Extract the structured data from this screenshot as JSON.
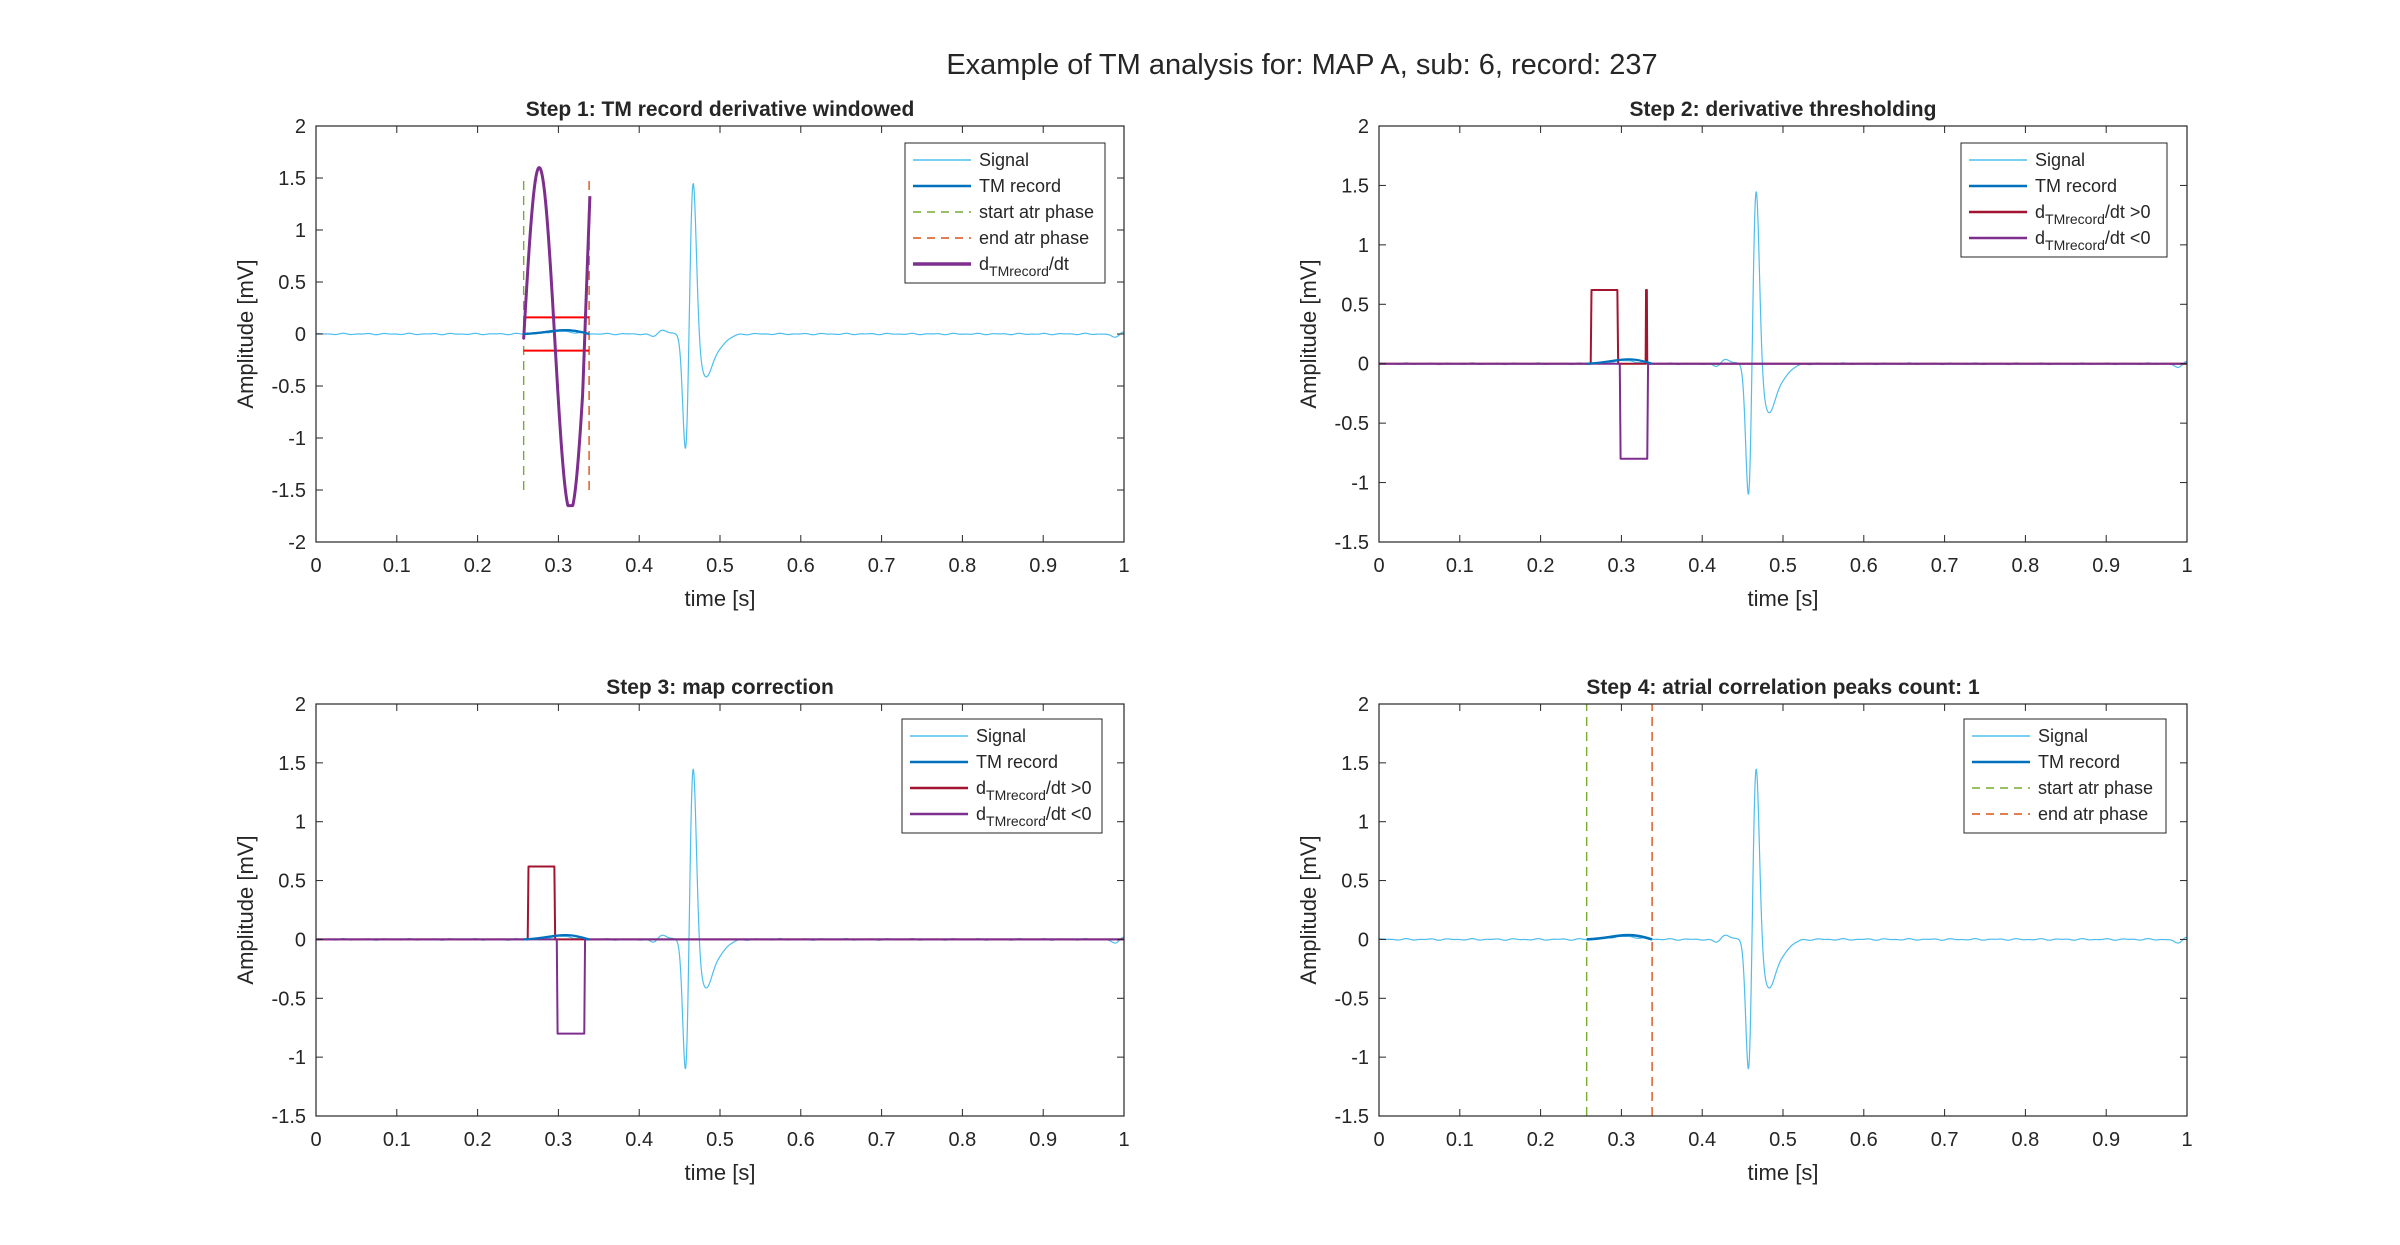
{
  "figure_title": "Example of TM analysis for: MAP A, sub: 6, record: 237",
  "colors": {
    "signal": "#4DBEEE",
    "tm_record": "#0072BD",
    "deriv": "#7E2F8E",
    "deriv_pos": "#A2142F",
    "start_line": "#77AC30",
    "end_line": "#D95319",
    "threshold": "#FF0000",
    "axis": "#262626"
  },
  "chart_data": [
    {
      "type": "line",
      "title": "Step 1: TM record derivative windowed",
      "xlabel": "time [s]",
      "ylabel": "Amplitude [mV]",
      "xlim": [
        0,
        1
      ],
      "ylim": [
        -2,
        2
      ],
      "xticks": [
        0,
        0.1,
        0.2,
        0.3,
        0.4,
        0.5,
        0.6,
        0.7,
        0.8,
        0.9,
        1
      ],
      "yticks": [
        -2,
        -1.5,
        -1,
        -0.5,
        0,
        0.5,
        1,
        1.5,
        2
      ],
      "legend": [
        {
          "label": "Signal",
          "color": "signal",
          "style": "solid",
          "width": 1
        },
        {
          "label": "TM record",
          "color": "tm_record",
          "style": "solid",
          "width": 2
        },
        {
          "label": "start atr phase",
          "color": "start_line",
          "style": "dash",
          "width": 1
        },
        {
          "label": "end atr phase",
          "color": "end_line",
          "style": "dash",
          "width": 1
        },
        {
          "label": "d",
          "sub": "TMrecord",
          "post": "/dt",
          "color": "deriv",
          "style": "solid",
          "width": 3
        }
      ],
      "series": [
        {
          "name": "Signal",
          "kind": "ecg",
          "color": "signal",
          "width": 1.2
        },
        {
          "name": "TM record",
          "kind": "tm",
          "x0": 0.257,
          "x1": 0.338,
          "color": "tm_record",
          "width": 2.2
        },
        {
          "name": "start atr phase",
          "kind": "vline",
          "x": 0.257,
          "y": [
            -1.5,
            1.5
          ],
          "color": "start_line",
          "dash": true
        },
        {
          "name": "end atr phase",
          "kind": "vline",
          "x": 0.338,
          "y": [
            -1.5,
            1.5
          ],
          "color": "end_line",
          "dash": true
        },
        {
          "name": "threshold +",
          "kind": "hline",
          "x": [
            0.257,
            0.338
          ],
          "y": 0.16,
          "color": "threshold"
        },
        {
          "name": "threshold -",
          "kind": "hline",
          "x": [
            0.257,
            0.338
          ],
          "y": -0.16,
          "color": "threshold"
        },
        {
          "name": "dTMrecord/dt",
          "kind": "deriv",
          "color": "deriv",
          "width": 3
        },
        {
          "name": "TM record overlay",
          "kind": "tm",
          "x0": 0.257,
          "x1": 0.338,
          "color": "tm_record",
          "width": 2.2
        }
      ]
    },
    {
      "type": "line",
      "title": "Step 2: derivative thresholding",
      "xlabel": "time [s]",
      "ylabel": "Amplitude [mV]",
      "xlim": [
        0,
        1
      ],
      "ylim": [
        -1.5,
        2
      ],
      "xticks": [
        0,
        0.1,
        0.2,
        0.3,
        0.4,
        0.5,
        0.6,
        0.7,
        0.8,
        0.9,
        1
      ],
      "yticks": [
        -1.5,
        -1,
        -0.5,
        0,
        0.5,
        1,
        1.5,
        2
      ],
      "legend": [
        {
          "label": "Signal",
          "color": "signal",
          "style": "solid",
          "width": 1
        },
        {
          "label": "TM record",
          "color": "tm_record",
          "style": "solid",
          "width": 2
        },
        {
          "label": "d",
          "sub": "TMrecord",
          "post": "/dt >0",
          "color": "deriv_pos",
          "style": "solid",
          "width": 2
        },
        {
          "label": "d",
          "sub": "TMrecord",
          "post": "/dt <0",
          "color": "deriv",
          "style": "solid",
          "width": 2
        }
      ],
      "series": [
        {
          "name": "Signal",
          "kind": "ecg",
          "color": "signal",
          "width": 1.2
        },
        {
          "name": "dTMrecord/dt >0",
          "kind": "pos_step",
          "color": "deriv_pos",
          "width": 2
        },
        {
          "name": "dTMrecord/dt <0",
          "kind": "neg_step",
          "color": "deriv",
          "width": 2
        },
        {
          "name": "TM record",
          "kind": "tm",
          "x0": 0.257,
          "x1": 0.338,
          "color": "tm_record",
          "width": 2.2
        }
      ]
    },
    {
      "type": "line",
      "title": "Step 3: map correction",
      "xlabel": "time [s]",
      "ylabel": "Amplitude [mV]",
      "xlim": [
        0,
        1
      ],
      "ylim": [
        -1.5,
        2
      ],
      "xticks": [
        0,
        0.1,
        0.2,
        0.3,
        0.4,
        0.5,
        0.6,
        0.7,
        0.8,
        0.9,
        1
      ],
      "yticks": [
        -1.5,
        -1,
        -0.5,
        0,
        0.5,
        1,
        1.5,
        2
      ],
      "legend": [
        {
          "label": "Signal",
          "color": "signal",
          "style": "solid",
          "width": 1
        },
        {
          "label": "TM record",
          "color": "tm_record",
          "style": "solid",
          "width": 2
        },
        {
          "label": "d",
          "sub": "TMrecord",
          "post": "/dt >0",
          "color": "deriv_pos",
          "style": "solid",
          "width": 2
        },
        {
          "label": "d",
          "sub": "TMrecord",
          "post": "/dt <0",
          "color": "deriv",
          "style": "solid",
          "width": 2
        }
      ],
      "series": [
        {
          "name": "Signal",
          "kind": "ecg",
          "color": "signal",
          "width": 1.2
        },
        {
          "name": "dTMrecord/dt >0",
          "kind": "pos_step_corr",
          "color": "deriv_pos",
          "width": 2
        },
        {
          "name": "dTMrecord/dt <0",
          "kind": "neg_step",
          "color": "deriv",
          "width": 2
        },
        {
          "name": "TM record",
          "kind": "tm",
          "x0": 0.257,
          "x1": 0.338,
          "color": "tm_record",
          "width": 2.2
        }
      ]
    },
    {
      "type": "line",
      "title": "Step 4: atrial correlation peaks count: 1",
      "xlabel": "time [s]",
      "ylabel": "Amplitude [mV]",
      "xlim": [
        0,
        1
      ],
      "ylim": [
        -1.5,
        2
      ],
      "xticks": [
        0,
        0.1,
        0.2,
        0.3,
        0.4,
        0.5,
        0.6,
        0.7,
        0.8,
        0.9,
        1
      ],
      "yticks": [
        -1.5,
        -1,
        -0.5,
        0,
        0.5,
        1,
        1.5,
        2
      ],
      "legend": [
        {
          "label": "Signal",
          "color": "signal",
          "style": "solid",
          "width": 1
        },
        {
          "label": "TM record",
          "color": "tm_record",
          "style": "solid",
          "width": 2
        },
        {
          "label": "start atr phase",
          "color": "start_line",
          "style": "dash",
          "width": 1
        },
        {
          "label": "end atr phase",
          "color": "end_line",
          "style": "dash",
          "width": 1
        }
      ],
      "series": [
        {
          "name": "Signal",
          "kind": "ecg",
          "color": "signal",
          "width": 1.2
        },
        {
          "name": "start atr phase",
          "kind": "vline",
          "x": 0.257,
          "y": [
            -1.5,
            2
          ],
          "color": "start_line",
          "dash": true
        },
        {
          "name": "end atr phase",
          "kind": "vline",
          "x": 0.338,
          "y": [
            -1.5,
            2
          ],
          "color": "end_line",
          "dash": true
        },
        {
          "name": "TM record",
          "kind": "tm",
          "x0": 0.257,
          "x1": 0.338,
          "color": "tm_record",
          "width": 2.6
        }
      ]
    }
  ]
}
